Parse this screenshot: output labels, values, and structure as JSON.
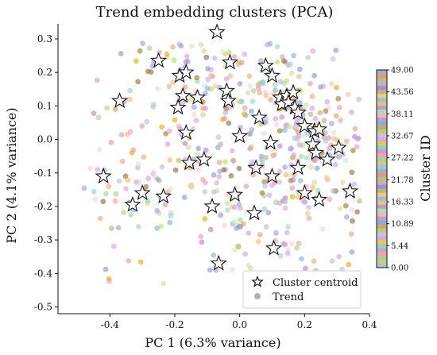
{
  "chart_data": {
    "type": "scatter",
    "title": "Trend embedding clusters (PCA)",
    "xlabel": "PC 1 (6.3% variance)",
    "ylabel": "PC 2 (4.1% variance)",
    "xlim": [
      -0.56,
      0.4
    ],
    "ylim": [
      -0.52,
      0.345
    ],
    "x_ticks": [
      "-0.4",
      "-0.2",
      "0.0",
      "0.2",
      "0.4"
    ],
    "x_tick_values": [
      -0.4,
      -0.2,
      0.0,
      0.2,
      0.4
    ],
    "y_ticks": [
      "0.3",
      "0.2",
      "0.1",
      "0.0",
      "-0.1",
      "-0.2",
      "-0.3",
      "-0.4",
      "-0.5"
    ],
    "y_tick_values": [
      0.3,
      0.2,
      0.1,
      0.0,
      -0.1,
      -0.2,
      -0.3,
      -0.4,
      -0.5
    ],
    "grid": false,
    "legend": {
      "placement": "bottom-right",
      "entries": [
        {
          "label": "Cluster centroid",
          "marker": "star"
        },
        {
          "label": "Trend",
          "marker": "circle"
        }
      ]
    },
    "colorbar": {
      "label": "Cluster ID",
      "range": [
        0,
        49
      ],
      "tick_labels": [
        "49.00",
        "43.56",
        "38.11",
        "32.67",
        "27.22",
        "21.78",
        "16.33",
        "10.89",
        "5.44",
        "0.00"
      ],
      "tick_values": [
        49.0,
        43.56,
        38.11,
        32.67,
        27.22,
        21.78,
        16.33,
        10.89,
        5.44,
        0.0
      ],
      "colormap": "tab20b/tab20c/Set3 cycle (50 discrete colors)"
    },
    "centroids": [
      {
        "x": -0.07,
        "y": 0.32
      },
      {
        "x": -0.25,
        "y": 0.235
      },
      {
        "x": -0.03,
        "y": 0.23
      },
      {
        "x": 0.08,
        "y": 0.22
      },
      {
        "x": -0.185,
        "y": 0.19
      },
      {
        "x": -0.165,
        "y": 0.2
      },
      {
        "x": 0.1,
        "y": 0.19
      },
      {
        "x": -0.37,
        "y": 0.115
      },
      {
        "x": -0.175,
        "y": 0.13
      },
      {
        "x": -0.13,
        "y": 0.125
      },
      {
        "x": -0.04,
        "y": 0.145
      },
      {
        "x": -0.035,
        "y": 0.115
      },
      {
        "x": -0.19,
        "y": 0.095
      },
      {
        "x": 0.125,
        "y": 0.125
      },
      {
        "x": 0.145,
        "y": 0.13
      },
      {
        "x": 0.165,
        "y": 0.14
      },
      {
        "x": 0.13,
        "y": 0.105
      },
      {
        "x": 0.15,
        "y": 0.11
      },
      {
        "x": 0.17,
        "y": 0.095
      },
      {
        "x": 0.18,
        "y": 0.08
      },
      {
        "x": 0.06,
        "y": 0.065
      },
      {
        "x": 0.2,
        "y": 0.04
      },
      {
        "x": 0.23,
        "y": 0.025
      },
      {
        "x": 0.245,
        "y": 0.03
      },
      {
        "x": -0.165,
        "y": 0.02
      },
      {
        "x": 0.0,
        "y": 0.01
      },
      {
        "x": 0.095,
        "y": -0.01
      },
      {
        "x": 0.225,
        "y": -0.015
      },
      {
        "x": 0.235,
        "y": -0.04
      },
      {
        "x": 0.305,
        "y": -0.025
      },
      {
        "x": 0.27,
        "y": -0.06
      },
      {
        "x": -0.11,
        "y": -0.06
      },
      {
        "x": -0.155,
        "y": -0.07
      },
      {
        "x": 0.05,
        "y": -0.085
      },
      {
        "x": 0.18,
        "y": -0.085
      },
      {
        "x": 0.1,
        "y": -0.11
      },
      {
        "x": -0.42,
        "y": -0.11
      },
      {
        "x": -0.3,
        "y": -0.16
      },
      {
        "x": -0.235,
        "y": -0.17
      },
      {
        "x": -0.015,
        "y": -0.165
      },
      {
        "x": 0.2,
        "y": -0.16
      },
      {
        "x": 0.245,
        "y": -0.18
      },
      {
        "x": 0.34,
        "y": -0.155
      },
      {
        "x": -0.33,
        "y": -0.195
      },
      {
        "x": -0.085,
        "y": -0.2
      },
      {
        "x": 0.045,
        "y": -0.22
      },
      {
        "x": 0.105,
        "y": -0.325
      },
      {
        "x": -0.065,
        "y": -0.37
      }
    ],
    "trend_points_note": "several hundred semi-transparent trend points colored by cluster ID"
  }
}
